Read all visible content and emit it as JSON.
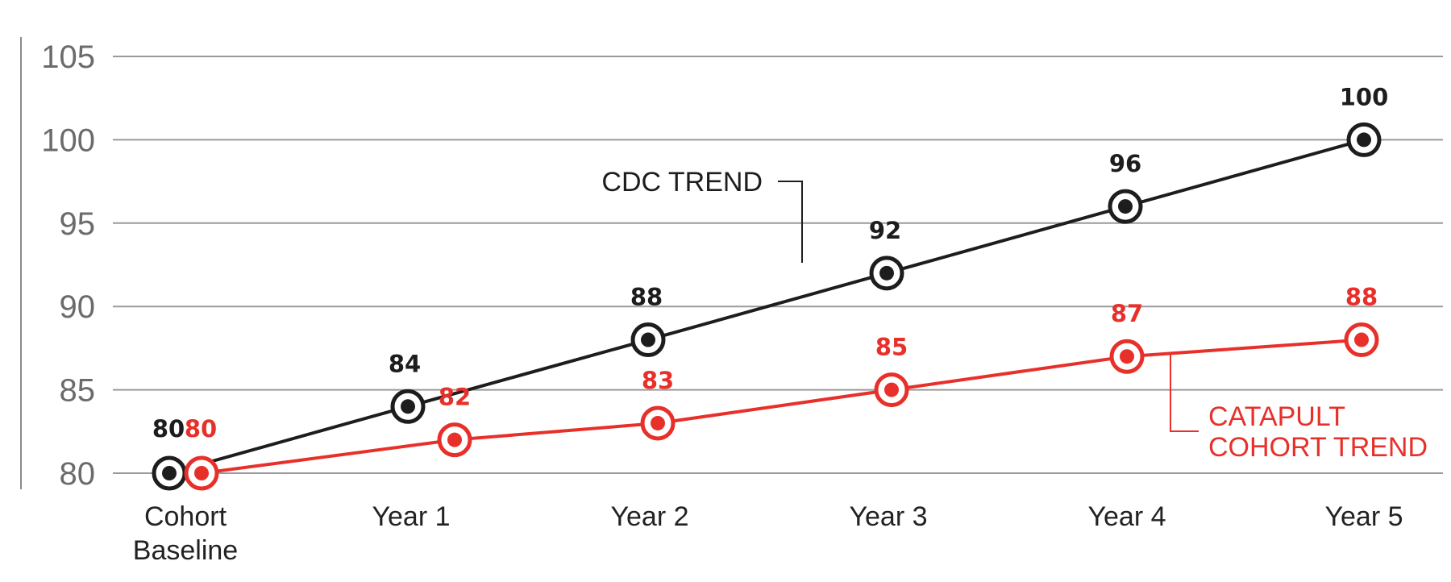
{
  "chart_data": {
    "type": "line",
    "categories": [
      "Cohort Baseline",
      "Year 1",
      "Year 2",
      "Year 3",
      "Year 4",
      "Year 5"
    ],
    "yticks": [
      80,
      85,
      90,
      95,
      100,
      105
    ],
    "ylim": [
      80,
      105
    ],
    "grid": true,
    "series": [
      {
        "name": "CDC TREND",
        "color": "#1d1d1d",
        "values": [
          80,
          84,
          88,
          92,
          96,
          100
        ],
        "labels": [
          "80",
          "84",
          "88",
          "92",
          "96",
          "100"
        ]
      },
      {
        "name": "CATAPULT COHORT TREND",
        "color": "#e8302a",
        "values": [
          80,
          82,
          83,
          85,
          87,
          88
        ],
        "labels": [
          "80",
          "82",
          "83",
          "85",
          "87",
          "88"
        ]
      }
    ]
  }
}
